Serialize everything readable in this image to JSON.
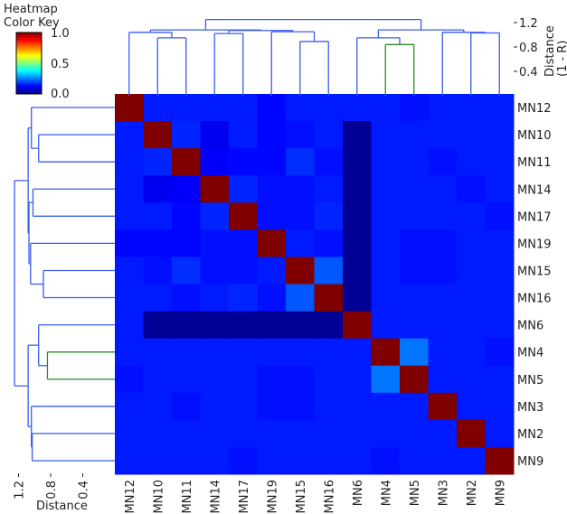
{
  "chart_data": {
    "type": "heatmap",
    "color_key": {
      "title_line1": "Heatmap",
      "title_line2": "Color Key",
      "ticks": [
        "0.0",
        "0.5",
        "1.0"
      ],
      "range": [
        0,
        1
      ],
      "colormap": "jet"
    },
    "labels": [
      "MN12",
      "MN10",
      "MN11",
      "MN14",
      "MN17",
      "MN19",
      "MN15",
      "MN16",
      "MN6",
      "MN4",
      "MN5",
      "MN3",
      "MN2",
      "MN9"
    ],
    "values": [
      [
        1.0,
        0.15,
        0.15,
        0.15,
        0.15,
        0.13,
        0.15,
        0.15,
        0.15,
        0.15,
        0.14,
        0.15,
        0.15,
        0.15
      ],
      [
        0.15,
        1.0,
        0.16,
        0.11,
        0.15,
        0.13,
        0.14,
        0.15,
        0.02,
        0.15,
        0.15,
        0.15,
        0.15,
        0.15
      ],
      [
        0.15,
        0.16,
        1.0,
        0.12,
        0.13,
        0.13,
        0.17,
        0.14,
        0.02,
        0.15,
        0.15,
        0.14,
        0.15,
        0.15
      ],
      [
        0.15,
        0.11,
        0.12,
        1.0,
        0.16,
        0.14,
        0.14,
        0.15,
        0.02,
        0.15,
        0.15,
        0.15,
        0.14,
        0.15
      ],
      [
        0.15,
        0.15,
        0.13,
        0.16,
        1.0,
        0.14,
        0.14,
        0.16,
        0.02,
        0.15,
        0.15,
        0.15,
        0.15,
        0.14
      ],
      [
        0.13,
        0.13,
        0.13,
        0.14,
        0.14,
        1.0,
        0.15,
        0.14,
        0.02,
        0.15,
        0.14,
        0.14,
        0.15,
        0.15
      ],
      [
        0.15,
        0.14,
        0.17,
        0.14,
        0.14,
        0.15,
        1.0,
        0.21,
        0.02,
        0.15,
        0.14,
        0.14,
        0.15,
        0.15
      ],
      [
        0.15,
        0.15,
        0.14,
        0.15,
        0.16,
        0.14,
        0.21,
        1.0,
        0.02,
        0.15,
        0.15,
        0.15,
        0.15,
        0.15
      ],
      [
        0.15,
        0.02,
        0.02,
        0.02,
        0.02,
        0.02,
        0.02,
        0.02,
        1.0,
        0.15,
        0.15,
        0.15,
        0.15,
        0.15
      ],
      [
        0.15,
        0.15,
        0.15,
        0.15,
        0.15,
        0.15,
        0.15,
        0.15,
        0.15,
        1.0,
        0.24,
        0.15,
        0.15,
        0.14
      ],
      [
        0.14,
        0.15,
        0.15,
        0.15,
        0.15,
        0.14,
        0.14,
        0.15,
        0.15,
        0.24,
        1.0,
        0.15,
        0.15,
        0.15
      ],
      [
        0.15,
        0.15,
        0.14,
        0.15,
        0.15,
        0.14,
        0.14,
        0.15,
        0.15,
        0.15,
        0.15,
        1.0,
        0.15,
        0.15
      ],
      [
        0.15,
        0.15,
        0.15,
        0.15,
        0.15,
        0.15,
        0.15,
        0.15,
        0.15,
        0.15,
        0.15,
        0.15,
        1.0,
        0.15
      ],
      [
        0.15,
        0.15,
        0.15,
        0.15,
        0.14,
        0.15,
        0.15,
        0.15,
        0.15,
        0.14,
        0.15,
        0.15,
        0.15,
        1.0
      ]
    ],
    "column_dendrogram": {
      "axis_label_line1": "Distance",
      "axis_label_line2": "(1 - R)",
      "ticks": [
        0.4,
        0.8,
        1.2
      ],
      "tick_labels": [
        "0.4",
        "0.8",
        "1.2"
      ]
    },
    "row_dendrogram": {
      "axis_label": "Distance",
      "ticks": [
        1.2,
        0.8,
        0.4
      ],
      "tick_labels": [
        "1.2",
        "0.8",
        "0.4"
      ]
    },
    "tree": {
      "h": 1.25,
      "c": [
        {
          "h": 1.08,
          "c": [
            {
              "h": 1.04,
              "c": [
                "MN12",
                {
                  "h": 0.95,
                  "c": [
                    "MN10",
                    "MN11"
                  ]
                }
              ]
            },
            {
              "h": 1.07,
              "c": [
                {
                  "h": 1.02,
                  "c": [
                    "MN14",
                    "MN17"
                  ]
                },
                {
                  "h": 1.05,
                  "c": [
                    "MN19",
                    {
                      "h": 0.89,
                      "c": [
                        "MN15",
                        "MN16"
                      ]
                    }
                  ]
                }
              ]
            }
          ]
        },
        {
          "h": 1.08,
          "c": [
            {
              "h": 0.95,
              "c": [
                "MN6",
                {
                  "h": 0.84,
                  "color": "#2a8a2a",
                  "c": [
                    "MN4",
                    "MN5"
                  ]
                }
              ]
            },
            {
              "h": 1.04,
              "c": [
                "MN3",
                {
                  "h": 1.03,
                  "c": [
                    "MN2",
                    "MN9"
                  ]
                }
              ]
            }
          ]
        }
      ]
    },
    "branch_color": "#3a5cf0"
  }
}
